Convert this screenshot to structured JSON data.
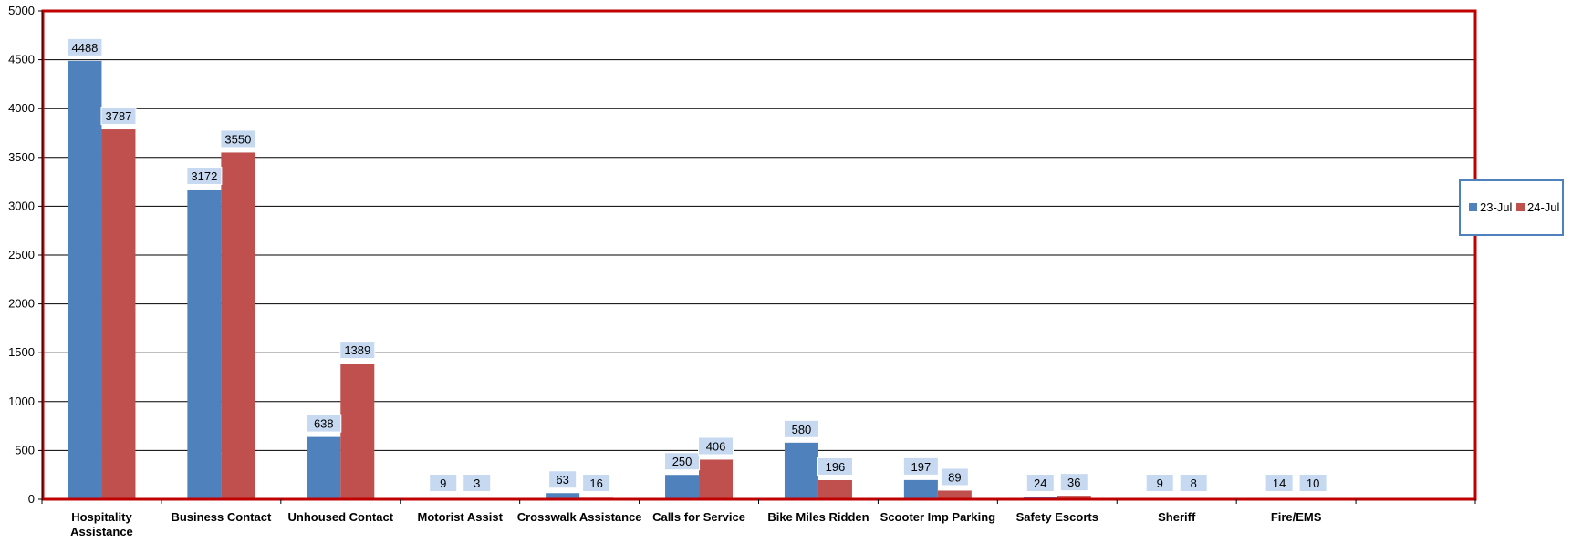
{
  "chart_data": {
    "type": "bar",
    "title": "",
    "xlabel": "",
    "ylabel": "",
    "categories": [
      [
        "Hospitality",
        "Assistance"
      ],
      [
        "Business Contact"
      ],
      [
        "Unhoused Contact"
      ],
      [
        "Motorist Assist"
      ],
      [
        "Crosswalk Assistance"
      ],
      [
        "Calls for Service"
      ],
      [
        "Bike Miles Ridden"
      ],
      [
        "Scooter Imp Parking"
      ],
      [
        "Safety Escorts"
      ],
      [
        "Sheriff"
      ],
      [
        "Fire/EMS"
      ],
      [
        ""
      ]
    ],
    "series": [
      {
        "name": "23-Jul",
        "color": "#4F81BD",
        "values": [
          4488,
          3172,
          638,
          9,
          63,
          250,
          580,
          197,
          24,
          9,
          14,
          null
        ]
      },
      {
        "name": "24-Jul",
        "color": "#C0504D",
        "values": [
          3787,
          3550,
          1389,
          3,
          16,
          406,
          196,
          89,
          36,
          8,
          10,
          null
        ]
      }
    ],
    "ylim": [
      0,
      5000
    ],
    "yticks": [
      0,
      500,
      1000,
      1500,
      2000,
      2500,
      3000,
      3500,
      4000,
      4500,
      5000
    ],
    "grid": true,
    "legend_position": "right",
    "plot_border_color": "#C00000",
    "label_box_color": "#C6D9F1"
  }
}
